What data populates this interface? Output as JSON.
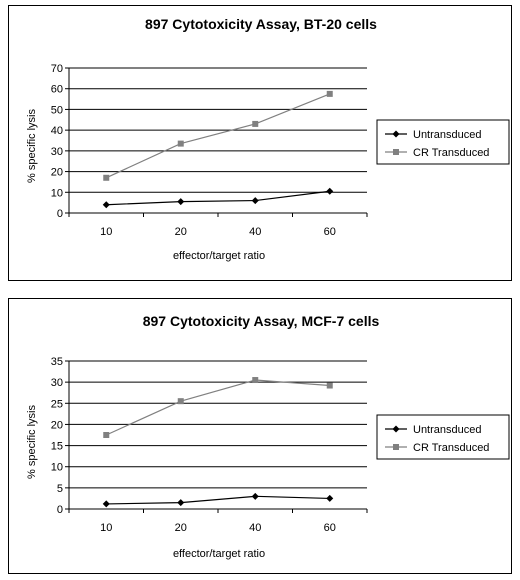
{
  "chart_data": [
    {
      "type": "line",
      "title": "897 Cytotoxicity Assay, BT-20 cells",
      "xlabel": "effector/target ratio",
      "ylabel": "% specific lysis",
      "categories": [
        "10",
        "20",
        "40",
        "60"
      ],
      "ylim": [
        0,
        70
      ],
      "ytick_step": 10,
      "grid": true,
      "legend_position": "right",
      "series": [
        {
          "name": "Untransduced",
          "values": [
            4,
            5.5,
            6,
            10.5
          ],
          "color": "#000000",
          "marker": "diamond"
        },
        {
          "name": "CR Transduced",
          "values": [
            17,
            33.5,
            43,
            57.5
          ],
          "color": "#808080",
          "marker": "square"
        }
      ]
    },
    {
      "type": "line",
      "title": "897 Cytotoxicity Assay, MCF-7 cells",
      "xlabel": "effector/target ratio",
      "ylabel": "% specific lysis",
      "categories": [
        "10",
        "20",
        "40",
        "60"
      ],
      "ylim": [
        0,
        35
      ],
      "ytick_step": 5,
      "grid": true,
      "legend_position": "right",
      "series": [
        {
          "name": "Untransduced",
          "values": [
            1.2,
            1.5,
            3,
            2.5
          ],
          "color": "#000000",
          "marker": "diamond"
        },
        {
          "name": "CR Transduced",
          "values": [
            17.5,
            25.5,
            30.5,
            29.2
          ],
          "color": "#808080",
          "marker": "square"
        }
      ]
    }
  ]
}
